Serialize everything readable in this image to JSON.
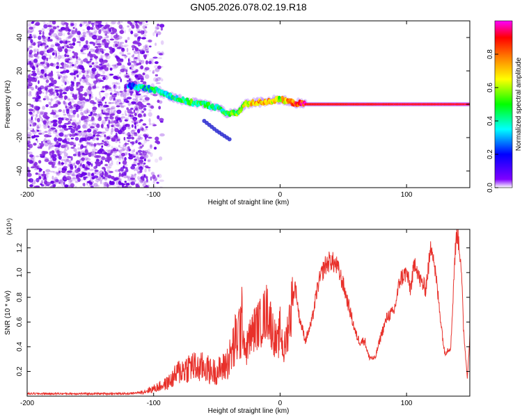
{
  "title": "GN05.2026.078.02.19.R18",
  "chart_data": [
    {
      "type": "heatmap",
      "name": "spectrogram",
      "xlabel": "Height of straight line (km)",
      "ylabel": "Frequency (Hz)",
      "xlim": [
        -200,
        150
      ],
      "ylim": [
        -50,
        50
      ],
      "xticks": [
        -200,
        -100,
        0,
        100
      ],
      "xtick_labels": [
        "-200",
        "-100",
        "0",
        "100"
      ],
      "yticks": [
        -40,
        -20,
        0,
        20,
        40
      ],
      "ytick_labels": [
        "-40",
        "-20",
        "0",
        "20",
        "40"
      ],
      "colorbar": {
        "label": "Normalized spectral amplitude",
        "range": [
          0,
          1
        ],
        "ticks": [
          0.0,
          0.2,
          0.4,
          0.6,
          0.8
        ],
        "tick_labels": [
          "0.0",
          "0.2",
          "0.4",
          "0.6",
          "0.8"
        ],
        "colormap": [
          "#ffffff",
          "#8000ff",
          "#0000ff",
          "#00ffff",
          "#00ff00",
          "#ffff00",
          "#ff8000",
          "#ff0000",
          "#ff00ff"
        ]
      },
      "features": {
        "noise_region_km": [
          -200,
          -105
        ],
        "ridge": {
          "height_km": [
            -118,
            -110,
            -100,
            -90,
            -80,
            -70,
            -60,
            -50,
            -40,
            -33,
            -28,
            -20,
            -10,
            0,
            10,
            20,
            150
          ],
          "freq_hz": [
            11,
            10,
            9,
            6,
            3,
            1,
            0,
            -2,
            -6,
            -5,
            0,
            1,
            1.5,
            3,
            1,
            0,
            0
          ],
          "amplitude": [
            0.25,
            0.35,
            0.4,
            0.4,
            0.45,
            0.45,
            0.45,
            0.4,
            0.5,
            0.5,
            0.6,
            0.7,
            0.75,
            0.6,
            0.8,
            0.9,
            0.95
          ]
        },
        "secondary_branch": {
          "height_km": [
            -60,
            -50,
            -40
          ],
          "freq_hz": [
            -10,
            -16,
            -21
          ]
        }
      },
      "colors": {
        "axis": "#000000",
        "noise": "#8a2be2"
      }
    },
    {
      "type": "line",
      "name": "snr",
      "xlabel": "Height of straight line (km)",
      "ylabel": "SNR (10 * v/v)",
      "y_multiplier": "(x10⁴)",
      "xlim": [
        -200,
        150
      ],
      "ylim": [
        0,
        13500
      ],
      "xticks": [
        -200,
        -100,
        0,
        100
      ],
      "xtick_labels": [
        "-200",
        "-100",
        "0",
        "100"
      ],
      "yticks": [
        2000,
        4000,
        6000,
        8000,
        10000,
        12000
      ],
      "ytick_labels": [
        "0.2",
        "0.4",
        "0.6",
        "0.8",
        "1.0",
        "1.2"
      ],
      "color": "#e8302a",
      "series": [
        {
          "name": "SNR",
          "x": [
            -200,
            -120,
            -110,
            -100,
            -90,
            -85,
            -80,
            -75,
            -70,
            -65,
            -60,
            -55,
            -50,
            -45,
            -40,
            -35,
            -30,
            -27,
            -25,
            -20,
            -15,
            -10,
            -5,
            -2,
            0,
            3,
            7,
            12,
            15,
            20,
            25,
            30,
            35,
            40,
            45,
            50,
            55,
            60,
            63,
            67,
            70,
            75,
            80,
            85,
            90,
            95,
            100,
            103,
            107,
            110,
            115,
            120,
            125,
            130,
            135,
            138,
            140,
            143,
            145,
            148,
            150
          ],
          "y": [
            200,
            200,
            300,
            600,
            1000,
            1400,
            2000,
            2200,
            2500,
            2200,
            2400,
            2000,
            2000,
            2300,
            3000,
            4500,
            6000,
            3500,
            4500,
            5500,
            6000,
            7000,
            5000,
            4000,
            5500,
            3500,
            6000,
            9000,
            6500,
            4500,
            6000,
            9000,
            10500,
            11000,
            10500,
            9000,
            7000,
            5000,
            4400,
            4500,
            3200,
            3000,
            5000,
            6500,
            6800,
            9500,
            10000,
            8700,
            11000,
            9500,
            8700,
            12500,
            8000,
            3500,
            4000,
            11000,
            13500,
            11000,
            5500,
            1500,
            4800
          ]
        }
      ],
      "colors": {
        "axis": "#000000"
      }
    }
  ]
}
